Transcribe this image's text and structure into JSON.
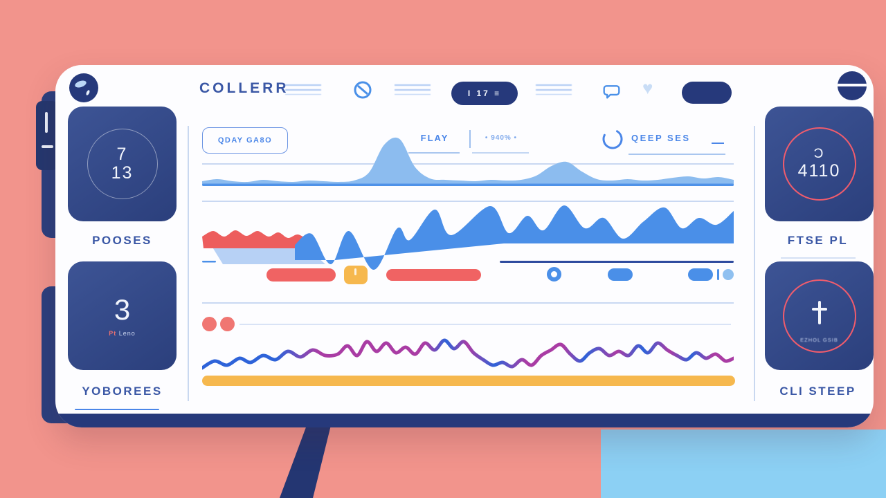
{
  "palette": {
    "background_pink": "#F2948C",
    "background_blue": "#8CD0F4",
    "navy": "#26397B",
    "accent_blue": "#4A86E8",
    "coral": "#F06363",
    "yellow": "#F6B84E",
    "magenta": "#A93CA4"
  },
  "brand": {
    "name": "COLLERR"
  },
  "header": {
    "pill_button_label": "I 17 ≡",
    "icons": {
      "logo": "logo-orb",
      "nav_scribbles": "blurred-nav-text",
      "circle_slash": "circle-slash-icon",
      "chat": "chat-bubble-icon",
      "heart": "heart-icon",
      "plain_pill": "solid-pill-button",
      "avatar": "avatar-menu"
    },
    "heart_glyph": "♥"
  },
  "toolbar": {
    "date_chip": "QDAY GA8O",
    "tab_active": "FLAY",
    "tab_secondary": "• 940% •",
    "timer_label": "QEEP SES",
    "minimize": "—"
  },
  "sidebar_left": {
    "card1": {
      "value_top": "7",
      "value_bottom": "13",
      "label": "POOSES"
    },
    "card2": {
      "value": "3",
      "sub_red": "Pt",
      "sub_text": "Leno",
      "label": "YOBOREES"
    }
  },
  "sidebar_right": {
    "card1": {
      "value_top": "Ɔ",
      "value_bottom": "4110",
      "label": "FTSE PL"
    },
    "card2": {
      "sub": "EZHOL GSIB",
      "label": "CLI STEEP"
    }
  },
  "chart_data": [
    {
      "type": "area",
      "name": "top-activity-area",
      "fill": "#8CBCEF",
      "baseline_color": "#4F92E8",
      "x_range": [
        0,
        100
      ],
      "values": [
        5,
        8,
        5,
        4,
        7,
        5,
        4,
        6,
        5,
        4,
        6,
        18,
        58,
        66,
        26,
        9,
        7,
        6,
        5,
        7,
        6,
        7,
        13,
        27,
        33,
        19,
        8,
        6,
        8,
        6,
        7,
        10,
        12,
        9,
        11,
        7
      ]
    },
    {
      "type": "area",
      "name": "main-waves",
      "series": [
        {
          "name": "lightblue-band",
          "fill": "rgba(125,173,236,0.55)",
          "polygon": [
            [
              14,
              60
            ],
            [
              150,
              60
            ],
            [
              178,
              86
            ],
            [
              30,
              86
            ]
          ]
        },
        {
          "name": "red-wave",
          "fill": "#ED5D5D",
          "points": [
            [
              0,
              46
            ],
            [
              16,
              38
            ],
            [
              32,
              46
            ],
            [
              48,
              37
            ],
            [
              64,
              45
            ],
            [
              80,
              38
            ],
            [
              96,
              46
            ],
            [
              110,
              40
            ],
            [
              124,
              48
            ],
            [
              138,
              43
            ],
            [
              152,
              50
            ],
            [
              164,
              55
            ]
          ]
        },
        {
          "name": "blue-wave",
          "fill": "#4A8FE8",
          "points": [
            [
              134,
              58
            ],
            [
              158,
              42
            ],
            [
              186,
              86
            ],
            [
              212,
              38
            ],
            [
              248,
              94
            ],
            [
              282,
              34
            ],
            [
              300,
              51
            ],
            [
              336,
              7
            ],
            [
              360,
              44
            ],
            [
              416,
              2
            ],
            [
              443,
              41
            ],
            [
              470,
              16
            ],
            [
              493,
              37
            ],
            [
              523,
              1
            ],
            [
              553,
              34
            ],
            [
              580,
              19
            ],
            [
              608,
              49
            ],
            [
              638,
              24
            ],
            [
              668,
              4
            ],
            [
              693,
              34
            ],
            [
              718,
              19
            ],
            [
              743,
              29
            ],
            [
              768,
              9
            ]
          ]
        }
      ],
      "baseline_navy": "#2E4B9E"
    },
    {
      "type": "line",
      "name": "squiggle-line",
      "stroke_width": 5,
      "points": [
        [
          0,
          48
        ],
        [
          18,
          38
        ],
        [
          36,
          44
        ],
        [
          54,
          34
        ],
        [
          70,
          40
        ],
        [
          88,
          30
        ],
        [
          106,
          36
        ],
        [
          124,
          24
        ],
        [
          142,
          32
        ],
        [
          160,
          22
        ],
        [
          178,
          30
        ],
        [
          196,
          28
        ],
        [
          210,
          16
        ],
        [
          224,
          30
        ],
        [
          238,
          10
        ],
        [
          252,
          24
        ],
        [
          266,
          12
        ],
        [
          280,
          26
        ],
        [
          294,
          18
        ],
        [
          308,
          28
        ],
        [
          322,
          12
        ],
        [
          336,
          22
        ],
        [
          350,
          8
        ],
        [
          364,
          20
        ],
        [
          378,
          10
        ],
        [
          392,
          26
        ],
        [
          406,
          36
        ],
        [
          420,
          44
        ],
        [
          434,
          40
        ],
        [
          448,
          46
        ],
        [
          462,
          36
        ],
        [
          476,
          44
        ],
        [
          490,
          30
        ],
        [
          504,
          22
        ],
        [
          518,
          14
        ],
        [
          532,
          28
        ],
        [
          546,
          38
        ],
        [
          560,
          26
        ],
        [
          574,
          20
        ],
        [
          588,
          30
        ],
        [
          602,
          24
        ],
        [
          616,
          30
        ],
        [
          630,
          16
        ],
        [
          644,
          26
        ],
        [
          658,
          12
        ],
        [
          672,
          22
        ],
        [
          686,
          30
        ],
        [
          700,
          36
        ],
        [
          714,
          26
        ],
        [
          728,
          34
        ],
        [
          742,
          28
        ],
        [
          756,
          38
        ],
        [
          768,
          34
        ]
      ],
      "gradient_stops": [
        [
          0,
          "#2E63D9"
        ],
        [
          0.14,
          "#2E63D9"
        ],
        [
          0.22,
          "#A93CA4"
        ],
        [
          0.42,
          "#A93CA4"
        ],
        [
          0.46,
          "#2E63D9"
        ],
        [
          0.5,
          "#A93CA4"
        ],
        [
          0.55,
          "#2E63D9"
        ],
        [
          0.61,
          "#A93CA4"
        ],
        [
          0.68,
          "#A93CA4"
        ],
        [
          0.72,
          "#2E63D9"
        ],
        [
          0.78,
          "#A93CA4"
        ],
        [
          0.83,
          "#2E63D9"
        ],
        [
          0.88,
          "#A93CA4"
        ],
        [
          0.92,
          "#2E63D9"
        ],
        [
          0.96,
          "#A93CA4"
        ],
        [
          1,
          "#A93CA4"
        ]
      ],
      "underline_bar_color": "#F6B84E"
    }
  ]
}
